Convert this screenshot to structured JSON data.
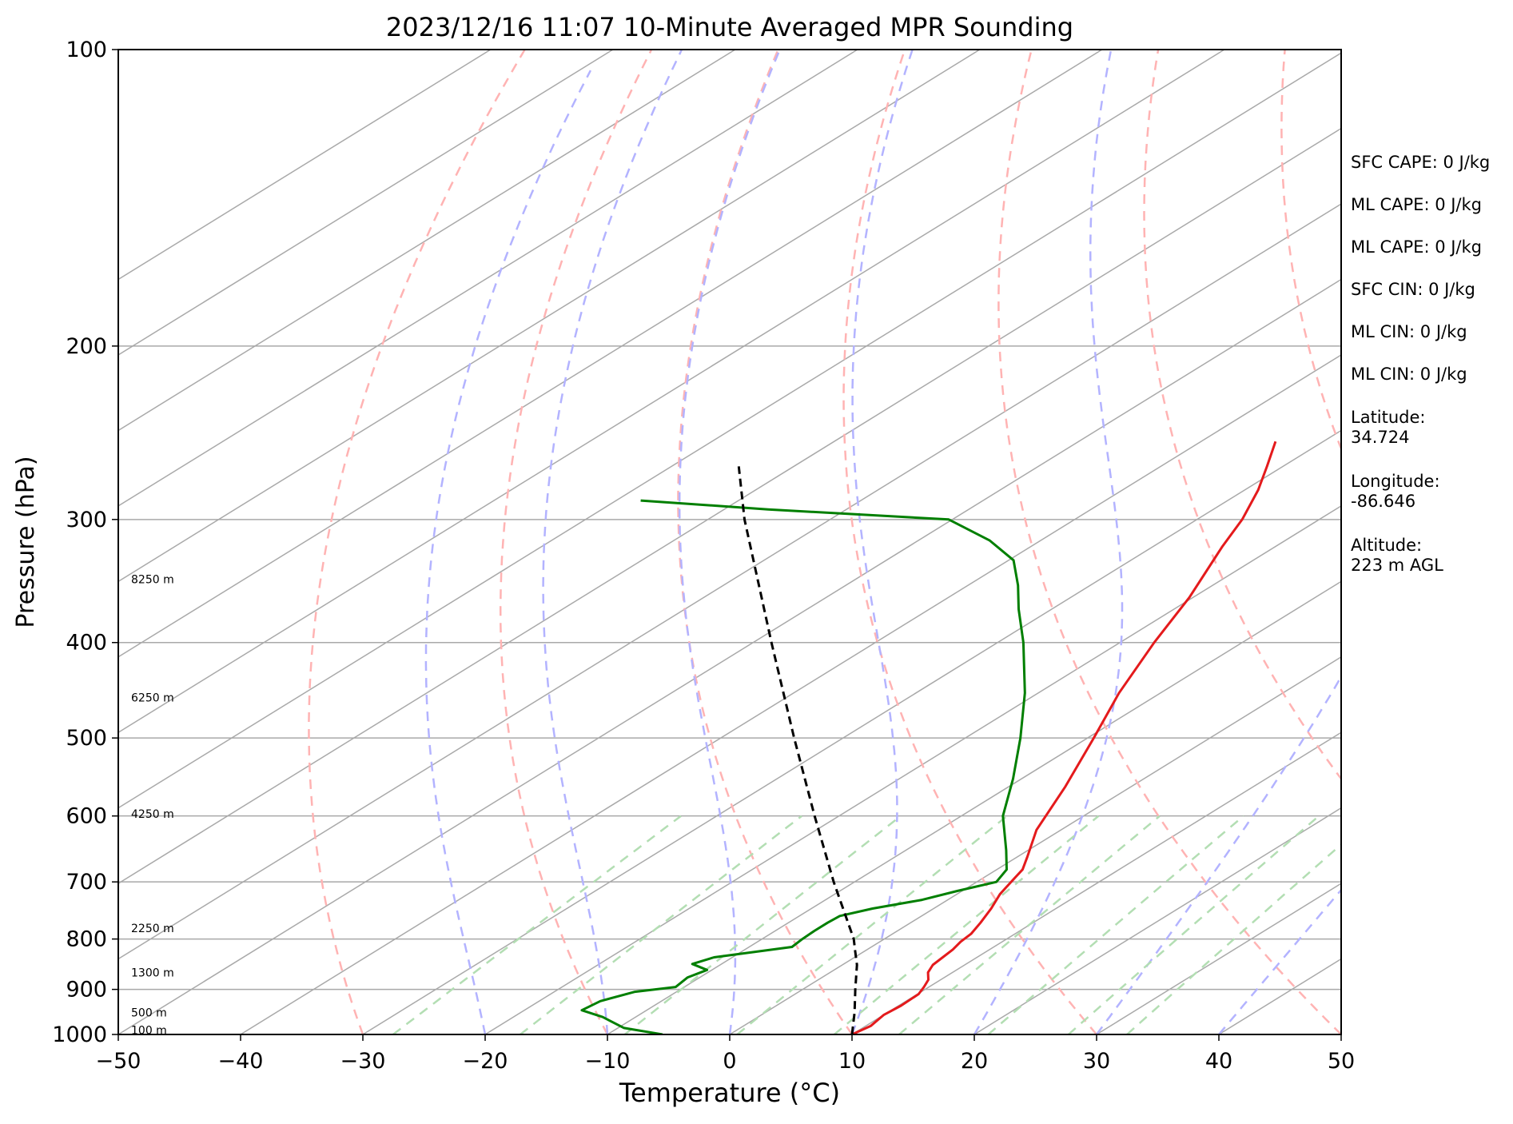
{
  "chart_data": {
    "type": "skew-t",
    "title": "2023/12/16 11:07 10-Minute Averaged MPR Sounding",
    "xlabel": "Temperature (°C)",
    "ylabel": "Pressure (hPa)",
    "xlim": [
      -50,
      50
    ],
    "ylim": [
      1000,
      100
    ],
    "yscale": "log",
    "x_ticks": [
      "−50",
      "−40",
      "−30",
      "−20",
      "−10",
      "0",
      "10",
      "20",
      "30",
      "40",
      "50"
    ],
    "y_ticks": [
      "100",
      "200",
      "300",
      "400",
      "500",
      "600",
      "700",
      "800",
      "900",
      "1000"
    ],
    "height_labels": [
      "8250 m",
      "6250 m",
      "4250 m",
      "2250 m",
      "1300 m",
      "500 m",
      "100 m"
    ],
    "annotations": [
      "SFC CAPE: 0 J/kg",
      "ML CAPE: 0 J/kg",
      "ML CAPE: 0 J/kg",
      "SFC CIN: 0 J/kg",
      "ML CIN: 0 J/kg",
      "ML CIN: 0 J/kg",
      "Latitude:",
      "34.724",
      "Longitude:",
      "-86.646",
      "Altitude:",
      "223 m AGL"
    ],
    "series": [
      {
        "color": "#e41a1c",
        "points": [
          [
            1000,
            10
          ],
          [
            980,
            10.4
          ],
          [
            955,
            10
          ],
          [
            935,
            10.2
          ],
          [
            910,
            10.1
          ],
          [
            895,
            9.6
          ],
          [
            880,
            9
          ],
          [
            865,
            8
          ],
          [
            850,
            7.4
          ],
          [
            835,
            7.2
          ],
          [
            820,
            7
          ],
          [
            805,
            6.6
          ],
          [
            790,
            6.4
          ],
          [
            770,
            5.7
          ],
          [
            745,
            4.7
          ],
          [
            720,
            3.5
          ],
          [
            700,
            2.8
          ],
          [
            680,
            2.1
          ],
          [
            660,
            0.8
          ],
          [
            620,
            -2
          ],
          [
            560,
            -5.4
          ],
          [
            500,
            -9.5
          ],
          [
            450,
            -13.4
          ],
          [
            400,
            -17.2
          ],
          [
            360,
            -20.3
          ],
          [
            320,
            -24.3
          ],
          [
            300,
            -26.3
          ],
          [
            280,
            -28.9
          ],
          [
            265,
            -31.3
          ],
          [
            250,
            -33.9
          ]
        ]
      },
      {
        "color": "#007f00",
        "points": [
          [
            1000,
            -5.5
          ],
          [
            985,
            -9.5
          ],
          [
            960,
            -12.7
          ],
          [
            945,
            -15.3
          ],
          [
            925,
            -15
          ],
          [
            905,
            -13.4
          ],
          [
            895,
            -10.7
          ],
          [
            875,
            -11
          ],
          [
            860,
            -10.4
          ],
          [
            848,
            -12.4
          ],
          [
            835,
            -11.5
          ],
          [
            815,
            -6.5
          ],
          [
            800,
            -6.7
          ],
          [
            785,
            -6.8
          ],
          [
            770,
            -6.8
          ],
          [
            758,
            -6.7
          ],
          [
            745,
            -5
          ],
          [
            730,
            -2.1
          ],
          [
            715,
            -0.4
          ],
          [
            700,
            1.6
          ],
          [
            680,
            0.8
          ],
          [
            650,
            -1.8
          ],
          [
            600,
            -6.6
          ],
          [
            550,
            -10.7
          ],
          [
            500,
            -15.5
          ],
          [
            450,
            -21.1
          ],
          [
            400,
            -27.9
          ],
          [
            370,
            -32.7
          ],
          [
            350,
            -35.9
          ],
          [
            330,
            -39.6
          ],
          [
            315,
            -44.2
          ],
          [
            300,
            -50.3
          ],
          [
            293,
            -66.4
          ],
          [
            287,
            -78
          ]
        ]
      },
      {
        "color": "#000000",
        "points": [
          [
            1000,
            10
          ],
          [
            950,
            7.3
          ],
          [
            900,
            4.3
          ],
          [
            850,
            1.2
          ],
          [
            820,
            -1
          ],
          [
            800,
            -2.5
          ],
          [
            700,
            -11.7
          ],
          [
            600,
            -22
          ],
          [
            500,
            -34
          ],
          [
            400,
            -48.5
          ],
          [
            300,
            -67
          ],
          [
            265,
            -74.5
          ]
        ]
      }
    ],
    "dry_adiabats_c": [
      -30,
      -10,
      10,
      30,
      50,
      70,
      90,
      110,
      130,
      150,
      170,
      190
    ],
    "moist_adiabats_c": [
      -20,
      -10,
      0,
      10,
      20,
      30,
      40
    ],
    "mixing_ratios_gkg": [
      0.4,
      1,
      2,
      4,
      7,
      10,
      16,
      24,
      32
    ]
  },
  "colors": {
    "isotherm": "#a9a9a9",
    "isobar": "#a9a9a9",
    "dry_adiabat": "#ffb3b3",
    "moist_adiabat": "#b3b3ff",
    "mixing_ratio": "#b3deb3",
    "temperature": "#e41a1c",
    "dewpoint": "#007f00",
    "parcel": "#000000"
  }
}
